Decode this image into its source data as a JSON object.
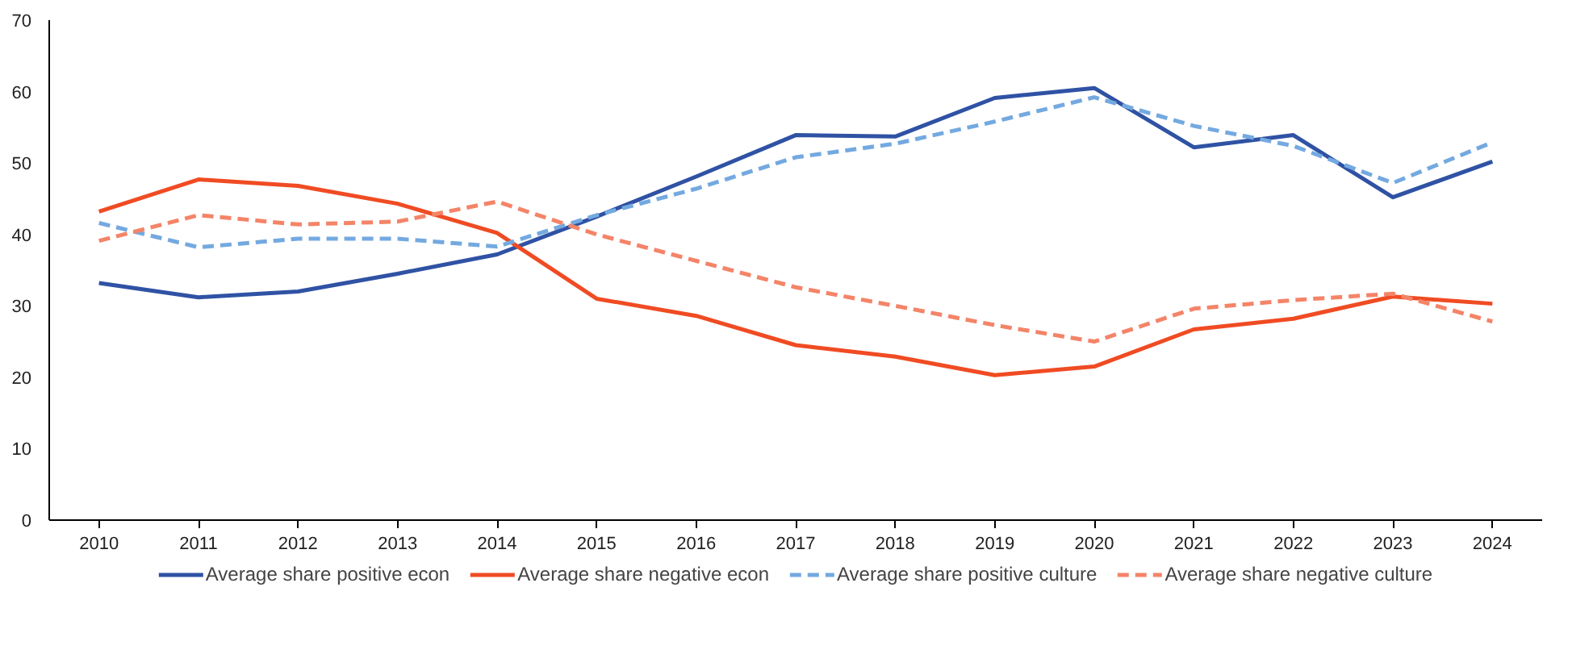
{
  "chart_data": {
    "type": "line",
    "categories": [
      "2010",
      "2011",
      "2012",
      "2013",
      "2014",
      "2015",
      "2016",
      "2017",
      "2018",
      "2019",
      "2020",
      "2021",
      "2022",
      "2023",
      "2024"
    ],
    "ylim": [
      0,
      70
    ],
    "yticks": [
      0,
      10,
      20,
      30,
      40,
      50,
      60,
      70
    ],
    "grid": false,
    "legend": "bottom",
    "marker": "none",
    "series": [
      {
        "name": "Average share positive econ",
        "color": "#2f52a4",
        "line_style": "solid",
        "values": [
          33.2,
          31.2,
          32.0,
          34.5,
          37.2,
          42.5,
          48.1,
          53.9,
          53.7,
          59.1,
          60.5,
          52.2,
          53.9,
          45.2,
          50.2
        ]
      },
      {
        "name": "Average share negative econ",
        "color": "#f04b23",
        "line_style": "solid",
        "values": [
          43.2,
          47.7,
          46.8,
          44.3,
          40.2,
          31.0,
          28.6,
          24.5,
          22.9,
          20.3,
          21.5,
          26.7,
          28.2,
          31.3,
          30.3
        ]
      },
      {
        "name": "Average share positive culture",
        "color": "#74a9e0",
        "line_style": "dashed",
        "values": [
          41.6,
          38.2,
          39.4,
          39.4,
          38.3,
          42.7,
          46.4,
          50.8,
          52.7,
          55.8,
          59.2,
          55.2,
          52.4,
          47.2,
          52.9
        ]
      },
      {
        "name": "Average share negative culture",
        "color": "#f48468",
        "line_style": "dashed",
        "values": [
          39.1,
          42.7,
          41.4,
          41.8,
          44.6,
          40.0,
          36.3,
          32.6,
          30.0,
          27.3,
          25.0,
          29.6,
          30.8,
          31.7,
          27.8
        ]
      }
    ]
  }
}
